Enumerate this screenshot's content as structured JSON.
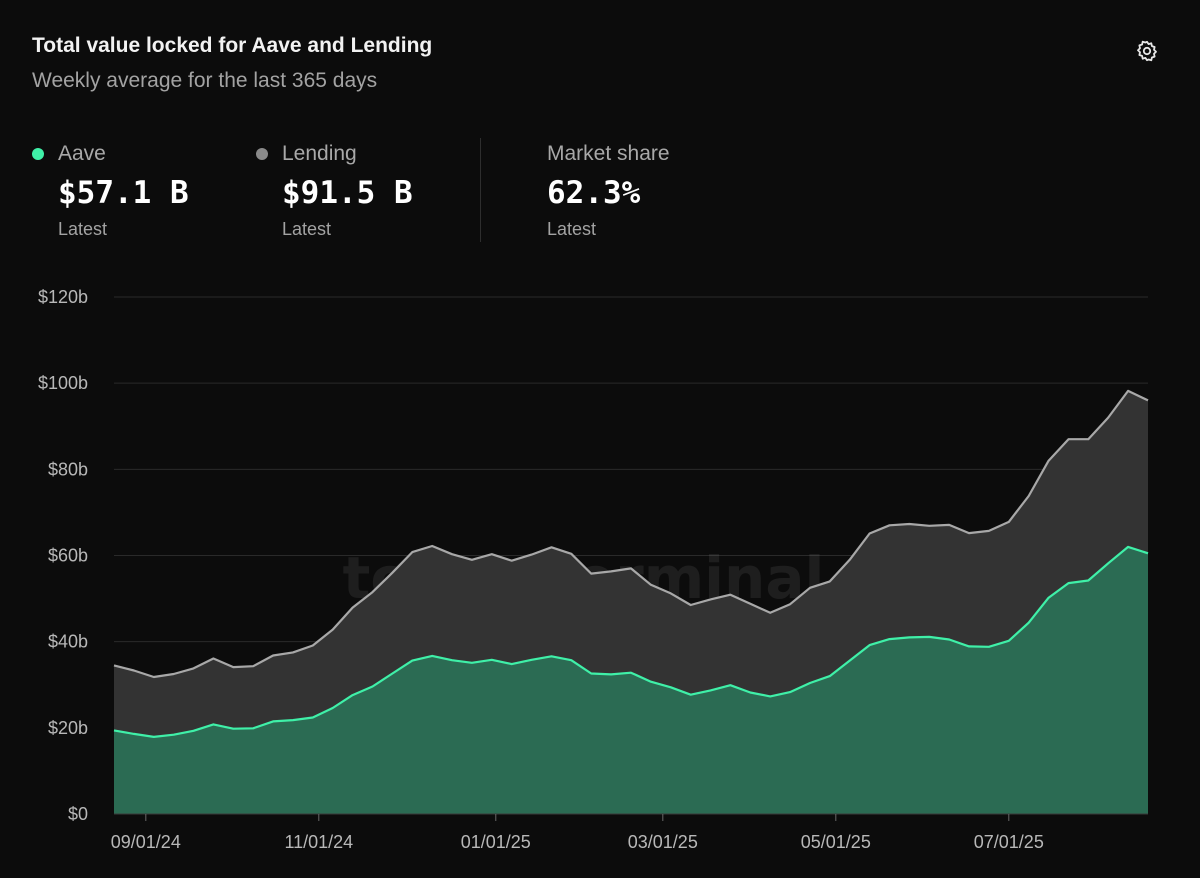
{
  "header": {
    "title": "Total value locked for Aave and Lending",
    "subtitle": "Weekly average for the last 365 days",
    "settings_icon": "gear-icon"
  },
  "metrics": {
    "aave": {
      "label": "Aave",
      "value": "$57.1 B",
      "sub": "Latest",
      "color": "#3ff0a8"
    },
    "lending": {
      "label": "Lending",
      "value": "$91.5 B",
      "sub": "Latest",
      "color": "#8a8a8a"
    },
    "share": {
      "label": "Market share",
      "value": "62.3%",
      "sub": "Latest"
    }
  },
  "watermark": "token terminal_",
  "colors": {
    "aave_line": "#3ff0a8",
    "aave_fill": "#2b6b53",
    "lending_line": "#a8a8a8",
    "lending_fill": "#333333",
    "grid": "#2a2a2a",
    "background": "#0c0c0c"
  },
  "chart_data": {
    "type": "area",
    "title": "Total value locked for Aave and Lending",
    "subtitle": "Weekly average for the last 365 days",
    "ylim": [
      0,
      120
    ],
    "yticks": [
      0,
      20,
      40,
      60,
      80,
      100,
      120
    ],
    "ytick_labels": [
      "$0",
      "$20b",
      "$40b",
      "$60b",
      "$80b",
      "$100b",
      "$120b"
    ],
    "xticks": [
      {
        "label": "09/01/24",
        "index": 1.6
      },
      {
        "label": "11/01/24",
        "index": 10.3
      },
      {
        "label": "01/01/25",
        "index": 19.2
      },
      {
        "label": "03/01/25",
        "index": 27.6
      },
      {
        "label": "05/01/25",
        "index": 36.3
      },
      {
        "label": "07/01/25",
        "index": 45.0
      }
    ],
    "grid": true,
    "legend": "top",
    "series": [
      {
        "name": "Lending",
        "values": [
          34.5,
          33.3,
          31.8,
          32.5,
          33.8,
          36.1,
          34.1,
          34.3,
          36.8,
          37.5,
          39.1,
          42.8,
          47.9,
          51.5,
          56.0,
          60.8,
          62.2,
          60.3,
          59.0,
          60.3,
          58.8,
          60.2,
          61.9,
          60.4,
          55.8,
          56.3,
          57.0,
          53.2,
          51.2,
          48.5,
          49.8,
          50.9,
          48.8,
          46.7,
          48.7,
          52.5,
          54.0,
          59.0,
          65.1,
          67.0,
          67.3,
          66.9,
          67.1,
          65.2,
          65.7,
          67.8,
          73.8,
          82.0,
          87.0,
          87.0,
          92.0,
          98.2,
          96.0
        ],
        "color": "#a8a8a8"
      },
      {
        "name": "Aave",
        "values": [
          19.4,
          18.6,
          17.9,
          18.4,
          19.3,
          20.8,
          19.8,
          19.9,
          21.5,
          21.8,
          22.4,
          24.6,
          27.6,
          29.6,
          32.6,
          35.6,
          36.7,
          35.7,
          35.1,
          35.8,
          34.8,
          35.8,
          36.6,
          35.7,
          32.6,
          32.4,
          32.8,
          30.7,
          29.4,
          27.7,
          28.7,
          29.9,
          28.2,
          27.3,
          28.3,
          30.4,
          32.0,
          35.6,
          39.2,
          40.6,
          41.0,
          41.1,
          40.5,
          38.9,
          38.8,
          40.2,
          44.4,
          50.2,
          53.6,
          54.2,
          58.2,
          62.0,
          60.5
        ],
        "color": "#3ff0a8"
      }
    ]
  }
}
